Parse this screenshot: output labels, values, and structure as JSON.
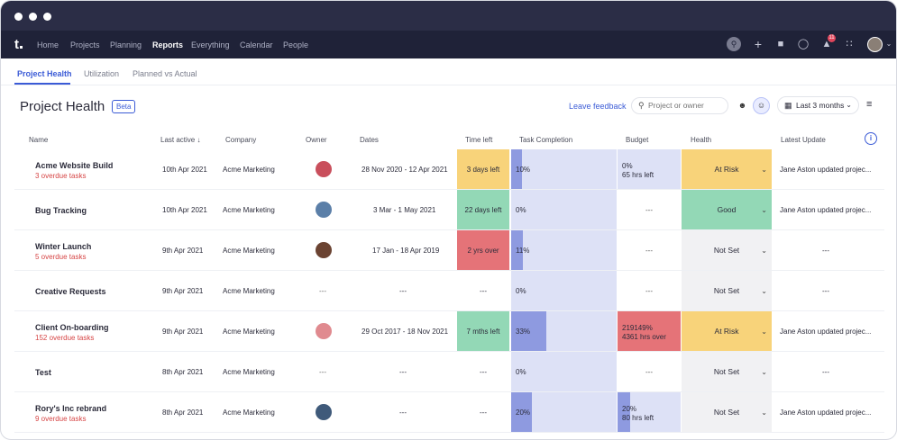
{
  "nav": {
    "logo": "t",
    "items": [
      "Home",
      "Projects",
      "Planning",
      "Reports",
      "Everything",
      "Calendar",
      "People"
    ],
    "active": "Reports",
    "notification_count": "11"
  },
  "tabs": [
    "Project Health",
    "Utilization",
    "Planned vs Actual"
  ],
  "header": {
    "title": "Project Health",
    "badge": "Beta",
    "feedback": "Leave feedback",
    "search_placeholder": "Project or owner",
    "range": "Last 3 months"
  },
  "columns": [
    "Name",
    "Last active",
    "Company",
    "Owner",
    "Dates",
    "Time left",
    "Task Completion",
    "Budget",
    "Health",
    "Latest Update"
  ],
  "rows": [
    {
      "name": "Acme Website Build",
      "overdue": "3 overdue tasks",
      "last_active": "10th Apr 2021",
      "company": "Acme Marketing",
      "owner": "avatar-1",
      "dates": "28 Nov 2020 - 12 Apr 2021",
      "time_left": "3 days left",
      "time_color": "#f8d37a",
      "completion": "10%",
      "completion_fill": 0.1,
      "budget_t1": "0%",
      "budget_t2": "65 hrs left",
      "budget_style": "blue",
      "budget_fill": 0,
      "health": "At Risk",
      "health_color": "#f8d37a",
      "update": "Jane Aston updated projec..."
    },
    {
      "name": "Bug Tracking",
      "overdue": "",
      "last_active": "10th Apr 2021",
      "company": "Acme Marketing",
      "owner": "avatar-2",
      "dates": "3 Mar - 1 May 2021",
      "time_left": "22 days left",
      "time_color": "#93d8b6",
      "completion": "0%",
      "completion_fill": 0,
      "budget_t1": "",
      "budget_t2": "",
      "budget_dash": "---",
      "budget_style": "white",
      "budget_fill": 0,
      "health": "Good",
      "health_color": "#93d8b6",
      "update": "Jane Aston updated projec..."
    },
    {
      "name": "Winter Launch",
      "overdue": "5 overdue tasks",
      "last_active": "9th Apr 2021",
      "company": "Acme Marketing",
      "owner": "avatar-3",
      "dates": "17 Jan - 18 Apr 2019",
      "time_left": "2 yrs over",
      "time_color": "#e57378",
      "completion": "11%",
      "completion_fill": 0.11,
      "budget_t1": "",
      "budget_t2": "",
      "budget_dash": "---",
      "budget_style": "white",
      "budget_fill": 0,
      "health": "Not Set",
      "health_color": "#f1f1f3",
      "update": "---"
    },
    {
      "name": "Creative Requests",
      "overdue": "",
      "last_active": "9th Apr 2021",
      "company": "Acme Marketing",
      "owner": "---",
      "dates": "---",
      "time_left": "---",
      "time_color": "#ffffff",
      "completion": "0%",
      "completion_fill": 0,
      "budget_t1": "",
      "budget_t2": "",
      "budget_dash": "---",
      "budget_style": "white",
      "budget_fill": 0,
      "health": "Not Set",
      "health_color": "#f1f1f3",
      "update": "---"
    },
    {
      "name": "Client On-boarding",
      "overdue": "152 overdue tasks",
      "last_active": "9th Apr 2021",
      "company": "Acme Marketing",
      "owner": "avatar-4",
      "dates": "29 Oct 2017 - 18 Nov 2021",
      "time_left": "7 mths left",
      "time_color": "#93d8b6",
      "completion": "33%",
      "completion_fill": 0.33,
      "budget_t1": "219149%",
      "budget_t2": "4361 hrs over",
      "budget_style": "red",
      "budget_fill": 0,
      "health": "At Risk",
      "health_color": "#f8d37a",
      "update": "Jane Aston updated projec..."
    },
    {
      "name": "Test",
      "overdue": "",
      "last_active": "8th Apr 2021",
      "company": "Acme Marketing",
      "owner": "---",
      "dates": "---",
      "time_left": "---",
      "time_color": "#ffffff",
      "completion": "0%",
      "completion_fill": 0,
      "budget_t1": "",
      "budget_t2": "",
      "budget_dash": "---",
      "budget_style": "white",
      "budget_fill": 0,
      "health": "Not Set",
      "health_color": "#f1f1f3",
      "update": "---"
    },
    {
      "name": "Rory's Inc rebrand",
      "overdue": "9 overdue tasks",
      "last_active": "8th Apr 2021",
      "company": "Acme Marketing",
      "owner": "avatar-5",
      "dates": "---",
      "time_left": "---",
      "time_color": "#ffffff",
      "completion": "20%",
      "completion_fill": 0.2,
      "budget_t1": "20%",
      "budget_t2": "80 hrs left",
      "budget_style": "blue",
      "budget_fill": 0.2,
      "health": "Not Set",
      "health_color": "#f1f1f3",
      "update": "Jane Aston updated projec..."
    }
  ]
}
